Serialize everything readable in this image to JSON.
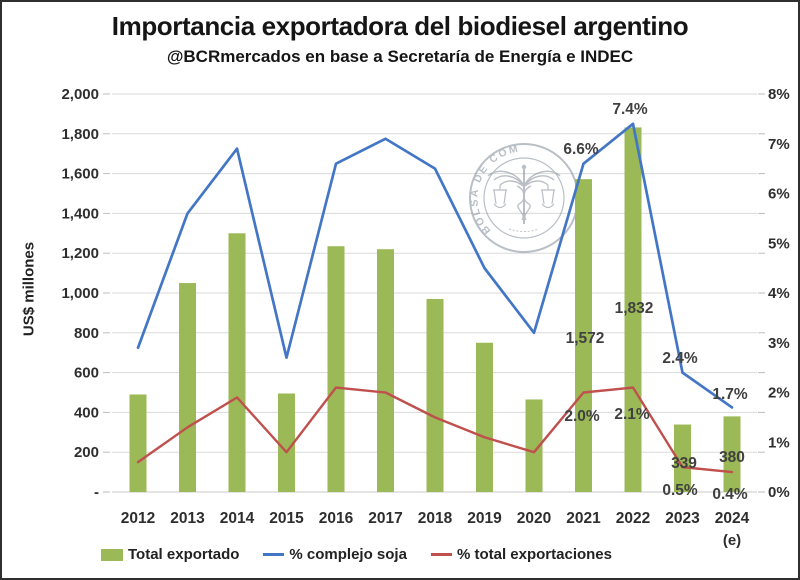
{
  "chart_data": {
    "type": "combo",
    "title": "Importancia exportadora del biodiesel argentino",
    "subtitle": "@BCRmercados en base a Secretaría de Energía e INDEC",
    "categories": [
      "2012",
      "2013",
      "2014",
      "2015",
      "2016",
      "2017",
      "2018",
      "2019",
      "2020",
      "2021",
      "2022",
      "2023",
      "2024"
    ],
    "last_category_note": "(e)",
    "grid": true,
    "legend_position": "bottom",
    "grid_color": "#DADADA",
    "label_color": "#404040",
    "left_axis": {
      "label": "US$ millones",
      "min": 0,
      "max": 2000,
      "tick_step": 200,
      "tick_labels": [
        "2,000",
        "1,800",
        "1,600",
        "1,400",
        "1,200",
        "1,000",
        "800",
        "600",
        "400",
        "200",
        "-"
      ]
    },
    "right_axis": {
      "min": 0,
      "max": 8,
      "tick_step": 1,
      "tick_labels": [
        "8%",
        "7%",
        "6%",
        "5%",
        "4%",
        "3%",
        "2%",
        "1%",
        "0%"
      ]
    },
    "series": [
      {
        "name": "Total exportado",
        "type": "bar",
        "axis": "left",
        "color": "#9BB956",
        "values": [
          490,
          1050,
          1300,
          495,
          1235,
          1220,
          970,
          750,
          465,
          1572,
          1832,
          339,
          380
        ],
        "point_labels": {
          "2021": "1,572",
          "2022": "1,832",
          "2023": "339",
          "2024": "380"
        }
      },
      {
        "name": "% complejo soja",
        "type": "line",
        "axis": "right",
        "color": "#4377C6",
        "values": [
          2.9,
          5.6,
          6.9,
          2.7,
          6.6,
          7.1,
          6.5,
          4.5,
          3.2,
          6.6,
          7.4,
          2.4,
          1.7
        ],
        "point_labels": {
          "2021": "6.6%",
          "2022": "7.4%",
          "2023": "2.4%",
          "2024": "1.7%"
        }
      },
      {
        "name": "% total exportaciones",
        "type": "line",
        "axis": "right",
        "color": "#C0504D",
        "values": [
          0.6,
          1.3,
          1.9,
          0.8,
          2.1,
          2.0,
          1.5,
          1.1,
          0.8,
          2.0,
          2.1,
          0.5,
          0.4
        ],
        "point_labels": {
          "2021": "2.0%",
          "2022": "2.1%",
          "2023": "0.5%",
          "2024": "0.4%"
        }
      }
    ],
    "watermark": {
      "text": "BOLSA DE COMERCIO DE ROSARIO",
      "color": "#76808F"
    }
  }
}
